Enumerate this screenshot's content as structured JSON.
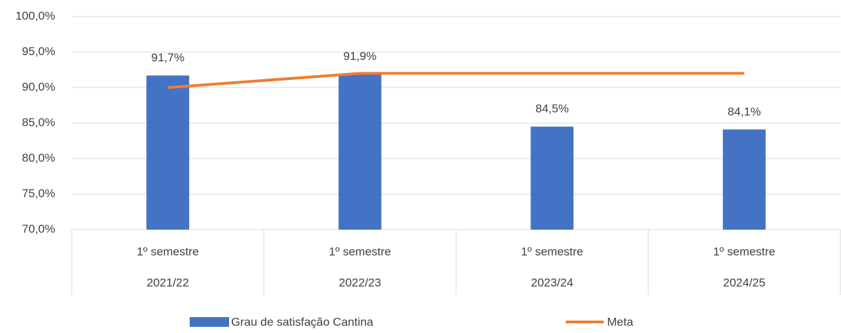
{
  "chart_data": {
    "type": "bar",
    "categories": [
      "1º semestre",
      "1º semestre",
      "1º semestre",
      "1º semestre"
    ],
    "category_groups": [
      "2021/22",
      "2022/23",
      "2023/24",
      "2024/25"
    ],
    "series": [
      {
        "name": "Grau de satisfação Cantina",
        "type": "bar",
        "color": "#4472c4",
        "values": [
          91.7,
          91.9,
          84.5,
          84.1
        ],
        "value_labels": [
          "91,7%",
          "91,9%",
          "84,5%",
          "84,1%"
        ]
      },
      {
        "name": "Meta",
        "type": "line",
        "color": "#ed7d31",
        "values": [
          90,
          92,
          92,
          92
        ]
      }
    ],
    "ylim": [
      70,
      100
    ],
    "yticks": [
      {
        "value": 70,
        "label": "70,0%"
      },
      {
        "value": 75,
        "label": "75,0%"
      },
      {
        "value": 80,
        "label": "80,0%"
      },
      {
        "value": 85,
        "label": "85,0%"
      },
      {
        "value": 90,
        "label": "90,0%"
      },
      {
        "value": 95,
        "label": "95,0%"
      },
      {
        "value": 100,
        "label": "100,0%"
      }
    ],
    "grid": true,
    "legend": "bottom"
  }
}
